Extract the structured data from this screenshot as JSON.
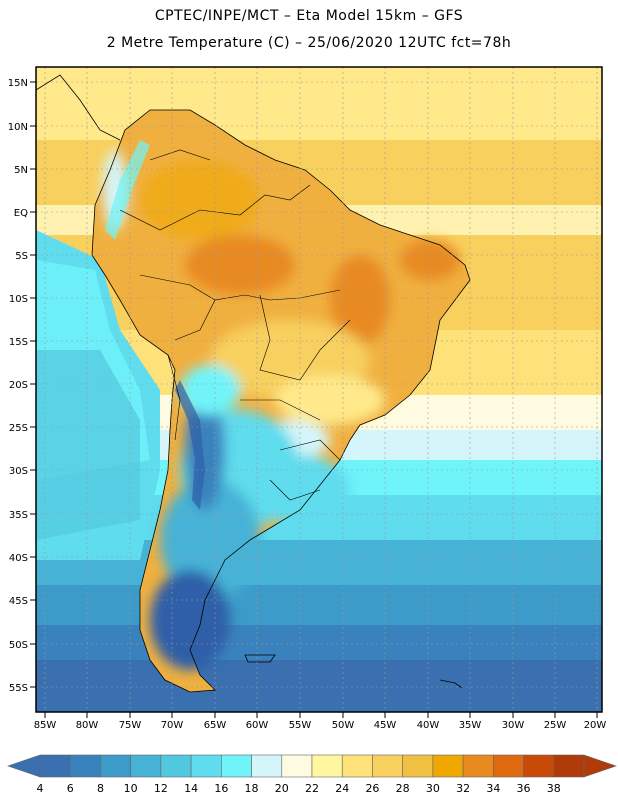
{
  "title_line1": "CPTEC/INPE/MCT –  Eta Model 15km – GFS",
  "title_line2": "2 Metre Temperature (C) – 25/06/2020 12UTC fct=78h",
  "latitude_labels": [
    "15N",
    "10N",
    "5N",
    "EQ",
    "5S",
    "10S",
    "15S",
    "20S",
    "25S",
    "30S",
    "35S",
    "40S",
    "45S",
    "50S",
    "55S"
  ],
  "longitude_labels": [
    "85W",
    "80W",
    "75W",
    "70W",
    "65W",
    "60W",
    "55W",
    "50W",
    "45W",
    "40W",
    "35W",
    "30W",
    "25W",
    "20W"
  ],
  "colorbar": {
    "labels": [
      "4",
      "6",
      "8",
      "10",
      "12",
      "14",
      "16",
      "18",
      "20",
      "22",
      "24",
      "26",
      "28",
      "30",
      "32",
      "34",
      "36",
      "38"
    ],
    "colors": [
      "#3a6fb0",
      "#3a82bd",
      "#3c9bc9",
      "#46b2d6",
      "#52c7e0",
      "#5fdced",
      "#6ff4fa",
      "#d4f6fb",
      "#fffbe0",
      "#fff7a0",
      "#ffe17a",
      "#f8d05e",
      "#f0c042",
      "#f0a800",
      "#e88a20",
      "#e06a10",
      "#c94a08",
      "#b03a08"
    ]
  },
  "icons": {
    "coastline": "coastline-outline",
    "borders": "country-border-lines"
  }
}
